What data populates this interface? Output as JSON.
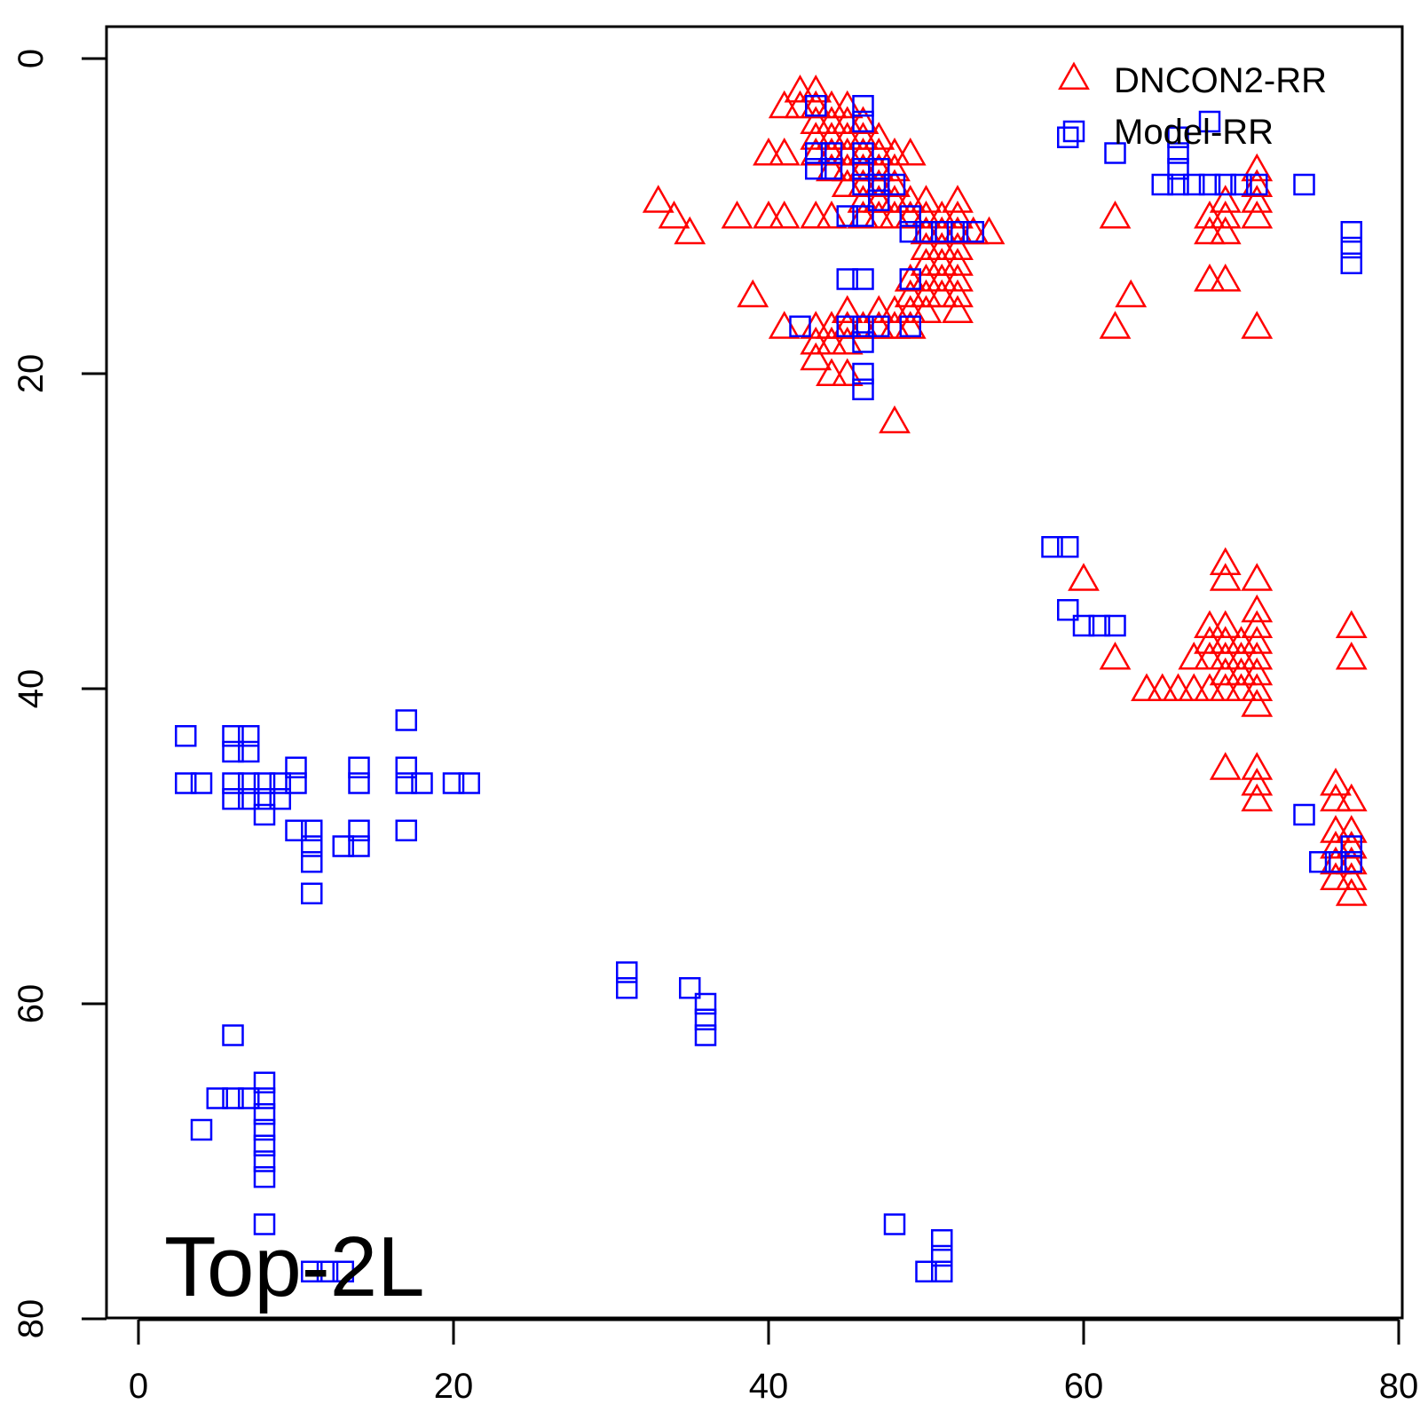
{
  "chart_data": {
    "type": "scatter",
    "title": "",
    "xlabel": "",
    "ylabel": "",
    "xlim": [
      0,
      80
    ],
    "ylim": [
      0,
      80
    ],
    "y_reversed": true,
    "x_ticks": [
      "0",
      "20",
      "40",
      "60",
      "80"
    ],
    "y_ticks": [
      "0",
      "20",
      "40",
      "60",
      "80"
    ],
    "panel_label": "Top-2L",
    "legend_position": "top-right",
    "series": [
      {
        "name": "DNCON2-RR",
        "marker": "triangle",
        "color": "#ff0000",
        "points": [
          [
            42,
            2
          ],
          [
            43,
            2
          ],
          [
            42,
            3
          ],
          [
            43,
            3
          ],
          [
            44,
            3
          ],
          [
            45,
            3
          ],
          [
            41,
            3
          ],
          [
            43,
            4
          ],
          [
            44,
            4
          ],
          [
            45,
            4
          ],
          [
            46,
            4
          ],
          [
            43,
            5
          ],
          [
            44,
            5
          ],
          [
            45,
            5
          ],
          [
            46,
            5
          ],
          [
            47,
            5
          ],
          [
            40,
            6
          ],
          [
            41,
            6
          ],
          [
            43,
            6
          ],
          [
            44,
            6
          ],
          [
            45,
            6
          ],
          [
            46,
            6
          ],
          [
            47,
            6
          ],
          [
            48,
            6
          ],
          [
            49,
            6
          ],
          [
            44,
            7
          ],
          [
            45,
            7
          ],
          [
            46,
            7
          ],
          [
            47,
            7
          ],
          [
            48,
            7
          ],
          [
            45,
            8
          ],
          [
            46,
            8
          ],
          [
            47,
            8
          ],
          [
            48,
            8
          ],
          [
            46,
            9
          ],
          [
            47,
            9
          ],
          [
            48,
            9
          ],
          [
            49,
            9
          ],
          [
            50,
            9
          ],
          [
            52,
            9
          ],
          [
            33,
            9
          ],
          [
            34,
            10
          ],
          [
            35,
            11
          ],
          [
            38,
            10
          ],
          [
            40,
            10
          ],
          [
            41,
            10
          ],
          [
            43,
            10
          ],
          [
            44,
            10
          ],
          [
            46,
            10
          ],
          [
            47,
            10
          ],
          [
            48,
            10
          ],
          [
            49,
            10
          ],
          [
            50,
            10
          ],
          [
            51,
            10
          ],
          [
            52,
            10
          ],
          [
            50,
            11
          ],
          [
            51,
            11
          ],
          [
            52,
            11
          ],
          [
            53,
            11
          ],
          [
            54,
            11
          ],
          [
            50,
            12
          ],
          [
            51,
            12
          ],
          [
            52,
            12
          ],
          [
            50,
            13
          ],
          [
            51,
            13
          ],
          [
            52,
            13
          ],
          [
            49,
            14
          ],
          [
            50,
            14
          ],
          [
            51,
            14
          ],
          [
            52,
            14
          ],
          [
            49,
            15
          ],
          [
            50,
            15
          ],
          [
            51,
            15
          ],
          [
            52,
            15
          ],
          [
            39,
            15
          ],
          [
            45,
            16
          ],
          [
            47,
            16
          ],
          [
            48,
            16
          ],
          [
            49,
            16
          ],
          [
            50,
            16
          ],
          [
            52,
            16
          ],
          [
            41,
            17
          ],
          [
            43,
            17
          ],
          [
            44,
            17
          ],
          [
            45,
            17
          ],
          [
            46,
            17
          ],
          [
            47,
            17
          ],
          [
            48,
            17
          ],
          [
            49,
            17
          ],
          [
            43,
            18
          ],
          [
            44,
            18
          ],
          [
            45,
            18
          ],
          [
            43,
            19
          ],
          [
            44,
            20
          ],
          [
            45,
            20
          ],
          [
            48,
            23
          ],
          [
            62,
            10
          ],
          [
            63,
            15
          ],
          [
            62,
            17
          ],
          [
            71,
            7
          ],
          [
            71,
            8
          ],
          [
            69,
            9
          ],
          [
            71,
            9
          ],
          [
            68,
            10
          ],
          [
            69,
            10
          ],
          [
            71,
            10
          ],
          [
            68,
            11
          ],
          [
            69,
            11
          ],
          [
            68,
            14
          ],
          [
            69,
            14
          ],
          [
            71,
            17
          ],
          [
            69,
            32
          ],
          [
            60,
            33
          ],
          [
            69,
            33
          ],
          [
            71,
            33
          ],
          [
            71,
            35
          ],
          [
            68,
            36
          ],
          [
            69,
            36
          ],
          [
            71,
            36
          ],
          [
            77,
            36
          ],
          [
            68,
            37
          ],
          [
            69,
            37
          ],
          [
            70,
            37
          ],
          [
            71,
            37
          ],
          [
            62,
            38
          ],
          [
            67,
            38
          ],
          [
            68,
            38
          ],
          [
            69,
            38
          ],
          [
            70,
            38
          ],
          [
            71,
            38
          ],
          [
            77,
            38
          ],
          [
            69,
            39
          ],
          [
            70,
            39
          ],
          [
            71,
            39
          ],
          [
            64,
            40
          ],
          [
            65,
            40
          ],
          [
            66,
            40
          ],
          [
            67,
            40
          ],
          [
            68,
            40
          ],
          [
            69,
            40
          ],
          [
            70,
            40
          ],
          [
            71,
            40
          ],
          [
            71,
            41
          ],
          [
            69,
            45
          ],
          [
            71,
            45
          ],
          [
            71,
            46
          ],
          [
            76,
            46
          ],
          [
            71,
            47
          ],
          [
            76,
            47
          ],
          [
            77,
            47
          ],
          [
            76,
            49
          ],
          [
            77,
            49
          ],
          [
            76,
            50
          ],
          [
            77,
            50
          ],
          [
            76,
            51
          ],
          [
            77,
            51
          ],
          [
            76,
            52
          ],
          [
            77,
            52
          ],
          [
            77,
            53
          ]
        ]
      },
      {
        "name": "Model-RR",
        "marker": "square",
        "color": "#0000ff",
        "points": [
          [
            43,
            3
          ],
          [
            46,
            3
          ],
          [
            46,
            4
          ],
          [
            43,
            6
          ],
          [
            44,
            6
          ],
          [
            46,
            6
          ],
          [
            43,
            7
          ],
          [
            44,
            7
          ],
          [
            46,
            7
          ],
          [
            47,
            7
          ],
          [
            46,
            8
          ],
          [
            47,
            8
          ],
          [
            48,
            8
          ],
          [
            47,
            9
          ],
          [
            45,
            10
          ],
          [
            46,
            10
          ],
          [
            49,
            10
          ],
          [
            49,
            11
          ],
          [
            50,
            11
          ],
          [
            51,
            11
          ],
          [
            52,
            11
          ],
          [
            53,
            11
          ],
          [
            45,
            14
          ],
          [
            46,
            14
          ],
          [
            49,
            14
          ],
          [
            42,
            17
          ],
          [
            45,
            17
          ],
          [
            46,
            17
          ],
          [
            47,
            17
          ],
          [
            49,
            17
          ],
          [
            46,
            18
          ],
          [
            46,
            20
          ],
          [
            46,
            21
          ],
          [
            59,
            5
          ],
          [
            68,
            4
          ],
          [
            62,
            6
          ],
          [
            66,
            5
          ],
          [
            66,
            6
          ],
          [
            66,
            7
          ],
          [
            65,
            8
          ],
          [
            66,
            8
          ],
          [
            67,
            8
          ],
          [
            68,
            8
          ],
          [
            69,
            8
          ],
          [
            70,
            8
          ],
          [
            71,
            8
          ],
          [
            74,
            8
          ],
          [
            77,
            11
          ],
          [
            77,
            12
          ],
          [
            77,
            13
          ],
          [
            58,
            31
          ],
          [
            59,
            31
          ],
          [
            59,
            35
          ],
          [
            60,
            36
          ],
          [
            61,
            36
          ],
          [
            62,
            36
          ],
          [
            74,
            48
          ],
          [
            75,
            51
          ],
          [
            76,
            51
          ],
          [
            77,
            50
          ],
          [
            77,
            51
          ],
          [
            3,
            43
          ],
          [
            6,
            43
          ],
          [
            7,
            43
          ],
          [
            6,
            44
          ],
          [
            7,
            44
          ],
          [
            17,
            42
          ],
          [
            3,
            46
          ],
          [
            4,
            46
          ],
          [
            6,
            46
          ],
          [
            7,
            46
          ],
          [
            8,
            46
          ],
          [
            9,
            46
          ],
          [
            10,
            46
          ],
          [
            14,
            46
          ],
          [
            17,
            46
          ],
          [
            18,
            46
          ],
          [
            20,
            46
          ],
          [
            21,
            46
          ],
          [
            10,
            45
          ],
          [
            14,
            45
          ],
          [
            17,
            45
          ],
          [
            6,
            47
          ],
          [
            7,
            47
          ],
          [
            8,
            47
          ],
          [
            9,
            47
          ],
          [
            8,
            48
          ],
          [
            10,
            49
          ],
          [
            11,
            49
          ],
          [
            14,
            49
          ],
          [
            17,
            49
          ],
          [
            11,
            50
          ],
          [
            13,
            50
          ],
          [
            14,
            50
          ],
          [
            11,
            51
          ],
          [
            11,
            53
          ],
          [
            31,
            58
          ],
          [
            31,
            59
          ],
          [
            35,
            59
          ],
          [
            36,
            60
          ],
          [
            36,
            61
          ],
          [
            36,
            62
          ],
          [
            6,
            62
          ],
          [
            5,
            66
          ],
          [
            6,
            66
          ],
          [
            7,
            66
          ],
          [
            8,
            65
          ],
          [
            8,
            66
          ],
          [
            8,
            67
          ],
          [
            8,
            68
          ],
          [
            8,
            69
          ],
          [
            8,
            70
          ],
          [
            8,
            71
          ],
          [
            4,
            68
          ],
          [
            8,
            74
          ],
          [
            11,
            77
          ],
          [
            12,
            77
          ],
          [
            13,
            77
          ],
          [
            48,
            74
          ],
          [
            51,
            75
          ],
          [
            51,
            76
          ],
          [
            50,
            77
          ],
          [
            51,
            77
          ]
        ]
      }
    ]
  }
}
